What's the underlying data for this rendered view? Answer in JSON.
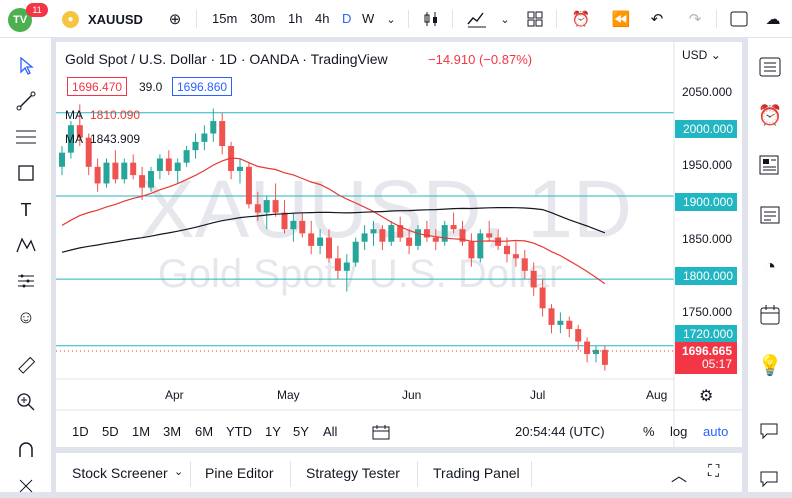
{
  "topbar": {
    "logo_text": "TV",
    "badge": "11",
    "symbol": "XAUUSD",
    "intervals": [
      "15m",
      "30m",
      "1h",
      "4h",
      "D",
      "W"
    ],
    "active_interval": "D"
  },
  "legend": {
    "title": "Gold Spot / U.S. Dollar · 1D · OANDA · TradingView",
    "change": "−14.910 (−0.87%)",
    "bid": "1696.470",
    "spread": "39.0",
    "ask": "1696.860",
    "ma1_label": "MA",
    "ma1_value": "1810.090",
    "ma2_label": "MA",
    "ma2_value": "1843.909"
  },
  "watermark": {
    "symbol": "XAUUSD, 1D",
    "description": "Gold Spot / U.S. Dollar"
  },
  "price_axis": {
    "currency": "USD",
    "labels": [
      "2050.000",
      "1950.000",
      "1850.000",
      "1750.000"
    ],
    "hlines": [
      "2000.000",
      "1900.000",
      "1800.000",
      "1720.000"
    ],
    "last_price": "1696.665",
    "countdown": "05:17"
  },
  "time_axis": {
    "labels": [
      "Apr",
      "May",
      "Jun",
      "Jul",
      "Aug"
    ]
  },
  "range_bar": {
    "ranges": [
      "1D",
      "5D",
      "1M",
      "3M",
      "6M",
      "YTD",
      "1Y",
      "5Y",
      "All"
    ],
    "clock": "20:54:44 (UTC)",
    "pct": "%",
    "log": "log",
    "auto": "auto"
  },
  "bottom_panel": {
    "tabs": [
      "Stock Screener",
      "Pine Editor",
      "Strategy Tester",
      "Trading Panel"
    ]
  },
  "chart_data": {
    "type": "candlestick",
    "price_range": [
      1680,
      2085
    ],
    "horizontal_levels": [
      2000,
      1900,
      1800,
      1720
    ],
    "colors": {
      "up": "#26a69a",
      "down": "#ef5350",
      "ma_fast": "#e53935",
      "ma_slow": "#131722",
      "levels": "#22b5c2"
    },
    "candles": [
      [
        1935,
        1960,
        1925,
        1952
      ],
      [
        1952,
        1990,
        1945,
        1985
      ],
      [
        1985,
        2010,
        1960,
        1970
      ],
      [
        1970,
        1975,
        1925,
        1935
      ],
      [
        1935,
        1945,
        1905,
        1915
      ],
      [
        1915,
        1945,
        1910,
        1940
      ],
      [
        1940,
        1955,
        1915,
        1920
      ],
      [
        1920,
        1945,
        1915,
        1940
      ],
      [
        1940,
        1950,
        1920,
        1925
      ],
      [
        1925,
        1935,
        1895,
        1910
      ],
      [
        1910,
        1935,
        1905,
        1930
      ],
      [
        1930,
        1950,
        1920,
        1945
      ],
      [
        1945,
        1955,
        1925,
        1930
      ],
      [
        1930,
        1945,
        1915,
        1940
      ],
      [
        1940,
        1960,
        1935,
        1955
      ],
      [
        1955,
        1975,
        1945,
        1965
      ],
      [
        1965,
        1985,
        1955,
        1975
      ],
      [
        1975,
        2005,
        1965,
        1990
      ],
      [
        1990,
        2000,
        1950,
        1960
      ],
      [
        1960,
        1965,
        1920,
        1930
      ],
      [
        1930,
        1945,
        1915,
        1935
      ],
      [
        1935,
        1940,
        1885,
        1890
      ],
      [
        1890,
        1905,
        1870,
        1880
      ],
      [
        1880,
        1900,
        1860,
        1895
      ],
      [
        1895,
        1915,
        1875,
        1880
      ],
      [
        1880,
        1895,
        1855,
        1860
      ],
      [
        1860,
        1880,
        1845,
        1870
      ],
      [
        1870,
        1880,
        1850,
        1855
      ],
      [
        1855,
        1870,
        1830,
        1840
      ],
      [
        1840,
        1860,
        1830,
        1850
      ],
      [
        1850,
        1860,
        1820,
        1825
      ],
      [
        1825,
        1840,
        1800,
        1810
      ],
      [
        1810,
        1830,
        1785,
        1820
      ],
      [
        1820,
        1850,
        1815,
        1845
      ],
      [
        1845,
        1865,
        1835,
        1855
      ],
      [
        1855,
        1870,
        1840,
        1860
      ],
      [
        1860,
        1865,
        1835,
        1845
      ],
      [
        1845,
        1870,
        1840,
        1865
      ],
      [
        1865,
        1875,
        1845,
        1850
      ],
      [
        1850,
        1860,
        1830,
        1840
      ],
      [
        1840,
        1865,
        1835,
        1860
      ],
      [
        1860,
        1870,
        1845,
        1850
      ],
      [
        1850,
        1860,
        1835,
        1845
      ],
      [
        1845,
        1870,
        1840,
        1865
      ],
      [
        1865,
        1880,
        1855,
        1860
      ],
      [
        1860,
        1870,
        1840,
        1845
      ],
      [
        1845,
        1855,
        1815,
        1825
      ],
      [
        1825,
        1860,
        1820,
        1855
      ],
      [
        1855,
        1870,
        1845,
        1850
      ],
      [
        1850,
        1860,
        1835,
        1840
      ],
      [
        1840,
        1850,
        1820,
        1830
      ],
      [
        1830,
        1845,
        1815,
        1825
      ],
      [
        1825,
        1835,
        1800,
        1810
      ],
      [
        1810,
        1820,
        1780,
        1790
      ],
      [
        1790,
        1800,
        1755,
        1765
      ],
      [
        1765,
        1770,
        1735,
        1745
      ],
      [
        1745,
        1760,
        1735,
        1750
      ],
      [
        1750,
        1755,
        1730,
        1740
      ],
      [
        1740,
        1745,
        1715,
        1725
      ],
      [
        1725,
        1730,
        1700,
        1710
      ],
      [
        1710,
        1720,
        1700,
        1715
      ],
      [
        1715,
        1720,
        1690,
        1697
      ]
    ]
  }
}
